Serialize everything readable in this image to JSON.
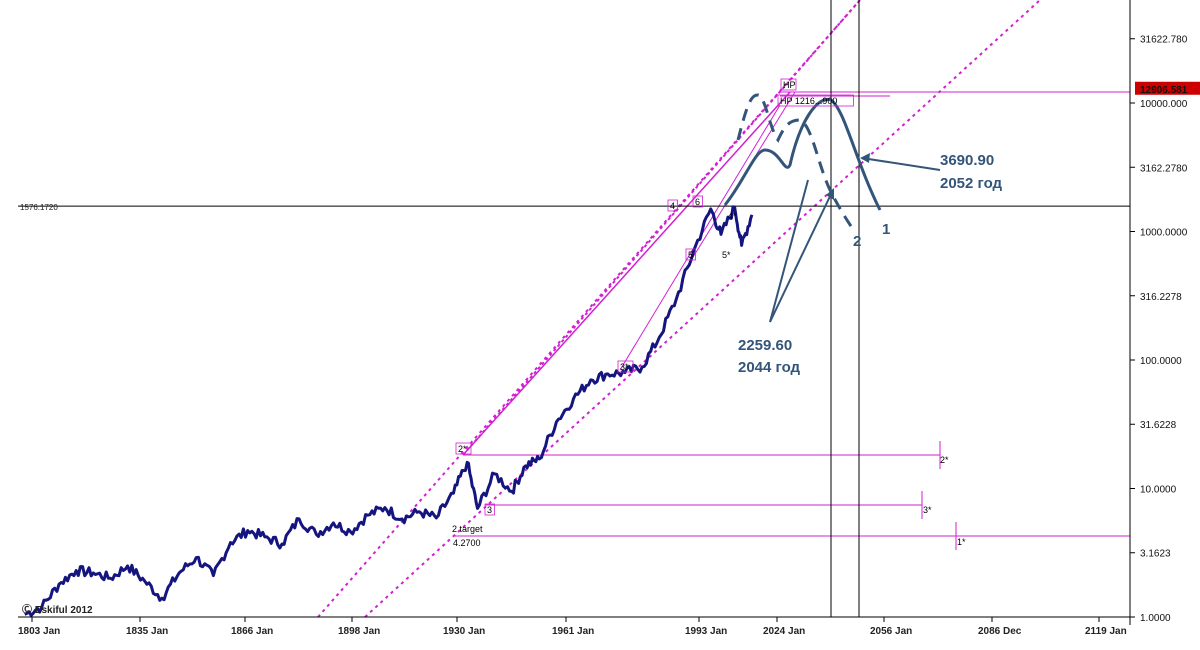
{
  "chart_data": {
    "type": "line",
    "scale": "log",
    "ylim": [
      1.0,
      56234
    ],
    "x_tick_labels": [
      "1803 Jan",
      "1835 Jan",
      "1866 Jan",
      "1898 Jan",
      "1930 Jan",
      "1961 Jan",
      "1993 Jan",
      "2024 Jan",
      "2056 Jan",
      "2086 Dec",
      "2119 Jan"
    ],
    "y_tick_labels": [
      "31622.780",
      "10000.000",
      "3162.2780",
      "1000.0000",
      "316.2278",
      "100.0000",
      "31.6228",
      "10.0000",
      "3.1623",
      "1.0000"
    ],
    "current_value_badge": "12906.581",
    "hline_label": "1576.1720",
    "watermark": "Ⓒ Eskiful 2012",
    "series_color": "#15157f",
    "projection_color": "#34557a",
    "channel_color": "#d21fd2",
    "badge_color": "#cc0000",
    "annotations": [
      {
        "value": "3690.90",
        "year": "2052 год"
      },
      {
        "value": "2259.60",
        "year": "2044 год"
      }
    ],
    "wave_labels": [
      "1",
      "2"
    ],
    "markers": [
      "HP",
      "HP 1216...900",
      "4",
      "6",
      "4*",
      "5",
      "5*",
      "3*",
      "2*",
      "2*",
      "3",
      "3*",
      "2 target",
      "4.2700",
      "1*"
    ],
    "series": [
      {
        "name": "",
        "x": [
          1800,
          1805,
          1810,
          1815,
          1820,
          1825,
          1830,
          1835,
          1840,
          1845,
          1850,
          1855,
          1860,
          1865,
          1870,
          1875,
          1880,
          1885,
          1890,
          1895,
          1900,
          1905,
          1910,
          1915,
          1920,
          1925,
          1929,
          1932,
          1937,
          1942,
          1946,
          1950,
          1955,
          1960,
          1965,
          1970,
          1975,
          1980,
          1985,
          1990,
          1995,
          2000,
          2003,
          2007,
          2009,
          2012
        ],
        "y": [
          1.05,
          1.2,
          1.8,
          2.3,
          2.2,
          2.0,
          2.5,
          1.9,
          1.4,
          2.2,
          2.9,
          2.1,
          3.8,
          4.7,
          4.2,
          3.7,
          5.8,
          4.4,
          5.4,
          4.6,
          6.2,
          7.1,
          5.8,
          6.6,
          5.9,
          9.2,
          16,
          7.0,
          13,
          9.5,
          15,
          17,
          33,
          50,
          70,
          78,
          80,
          88,
          150,
          300,
          700,
          1500,
          950,
          1540,
          780,
          1350
        ]
      }
    ]
  }
}
